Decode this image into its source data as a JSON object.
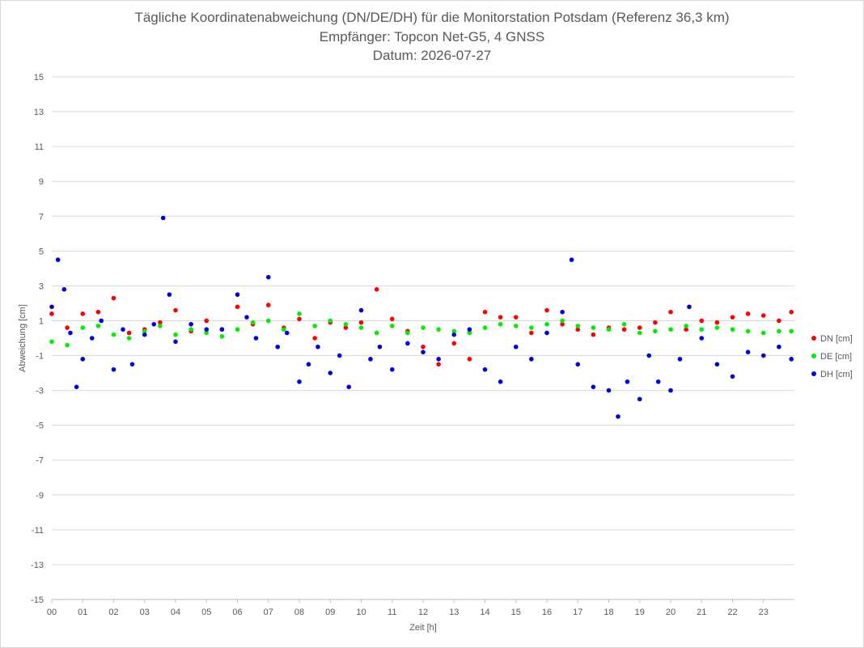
{
  "title_lines": [
    "Tägliche Koordinatenabweichung (DN/DE/DH) für die Monitorstation Potsdam (Referenz 36,3 km)",
    "Empfänger: Topcon Net-G5, 4 GNSS",
    "Datum: 2026-07-27"
  ],
  "chart_data": {
    "type": "scatter",
    "xlabel": "Zeit [h]",
    "ylabel": "Abweichung [cm]",
    "xlim": [
      0,
      24
    ],
    "ylim": [
      -15,
      15
    ],
    "x_ticks": [
      "00",
      "01",
      "02",
      "03",
      "04",
      "05",
      "06",
      "07",
      "08",
      "09",
      "10",
      "11",
      "12",
      "13",
      "14",
      "15",
      "16",
      "17",
      "18",
      "19",
      "20",
      "21",
      "22",
      "23"
    ],
    "y_ticks": [
      "15",
      "13",
      "11",
      "9",
      "7",
      "5",
      "3",
      "1",
      "-1",
      "-3",
      "-5",
      "-7",
      "-9",
      "-11",
      "-13",
      "-15"
    ],
    "grid": "horizontal",
    "legend_position": "right",
    "series": [
      {
        "name": "DN [cm]",
        "color": "#ff0000",
        "x": [
          0.0,
          0.5,
          1.0,
          1.5,
          2.0,
          2.5,
          3.0,
          3.5,
          4.0,
          4.5,
          5.0,
          5.5,
          6.0,
          6.5,
          7.0,
          7.5,
          8.0,
          8.5,
          9.0,
          9.5,
          10.0,
          10.5,
          11.0,
          11.5,
          12.0,
          12.5,
          13.0,
          13.5,
          14.0,
          14.5,
          15.0,
          15.5,
          16.0,
          16.5,
          17.0,
          17.5,
          18.0,
          18.5,
          19.0,
          19.5,
          20.0,
          20.5,
          21.0,
          21.5,
          22.0,
          22.5,
          23.0,
          23.5,
          23.9
        ],
        "y": [
          1.4,
          0.6,
          1.4,
          1.5,
          2.3,
          0.3,
          0.5,
          0.9,
          1.6,
          0.4,
          1.0,
          0.5,
          1.8,
          0.8,
          1.9,
          0.6,
          1.1,
          0.0,
          0.9,
          0.6,
          0.9,
          2.8,
          1.1,
          0.4,
          -0.5,
          -1.5,
          -0.3,
          -1.2,
          1.5,
          1.2,
          1.2,
          0.3,
          1.6,
          0.8,
          0.5,
          0.2,
          0.6,
          0.5,
          0.6,
          0.9,
          1.5,
          0.5,
          1.0,
          0.9,
          1.2,
          1.4,
          1.3,
          1.0,
          1.5
        ]
      },
      {
        "name": "DE [cm]",
        "color": "#00ee00",
        "x": [
          0.0,
          0.5,
          1.0,
          1.5,
          2.0,
          2.5,
          3.0,
          3.5,
          4.0,
          4.5,
          5.0,
          5.5,
          6.0,
          6.5,
          7.0,
          7.5,
          8.0,
          8.5,
          9.0,
          9.5,
          10.0,
          10.5,
          11.0,
          11.5,
          12.0,
          12.5,
          13.0,
          13.5,
          14.0,
          14.5,
          15.0,
          15.5,
          16.0,
          16.5,
          17.0,
          17.5,
          18.0,
          18.5,
          19.0,
          19.5,
          20.0,
          20.5,
          21.0,
          21.5,
          22.0,
          22.5,
          23.0,
          23.5,
          23.9
        ],
        "y": [
          -0.2,
          -0.4,
          0.6,
          0.7,
          0.2,
          0.0,
          0.4,
          0.7,
          0.2,
          0.5,
          0.3,
          0.1,
          0.5,
          0.9,
          1.0,
          0.5,
          1.4,
          0.7,
          1.0,
          0.8,
          0.6,
          0.3,
          0.7,
          0.3,
          0.6,
          0.5,
          0.4,
          0.3,
          0.6,
          0.8,
          0.7,
          0.6,
          0.8,
          1.0,
          0.7,
          0.6,
          0.5,
          0.8,
          0.3,
          0.4,
          0.5,
          0.7,
          0.5,
          0.6,
          0.5,
          0.4,
          0.3,
          0.4,
          0.4
        ]
      },
      {
        "name": "DH [cm]",
        "color": "#0000dd",
        "x": [
          0.0,
          0.2,
          0.4,
          0.6,
          0.8,
          1.0,
          1.3,
          1.6,
          2.0,
          2.3,
          2.6,
          3.0,
          3.3,
          3.6,
          3.8,
          4.0,
          4.5,
          5.0,
          5.5,
          6.0,
          6.3,
          6.6,
          7.0,
          7.3,
          7.6,
          8.0,
          8.3,
          8.6,
          9.0,
          9.3,
          9.6,
          10.0,
          10.3,
          10.6,
          11.0,
          11.5,
          12.0,
          12.5,
          13.0,
          13.5,
          14.0,
          14.5,
          15.0,
          15.5,
          16.0,
          16.5,
          16.8,
          17.0,
          17.5,
          18.0,
          18.3,
          18.6,
          19.0,
          19.3,
          19.6,
          20.0,
          20.3,
          20.6,
          21.0,
          21.5,
          22.0,
          22.5,
          23.0,
          23.5,
          23.9
        ],
        "y": [
          1.8,
          4.5,
          2.8,
          0.3,
          -2.8,
          -1.2,
          0.0,
          1.0,
          -1.8,
          0.5,
          -1.5,
          0.2,
          0.8,
          6.9,
          2.5,
          -0.2,
          0.8,
          0.5,
          0.5,
          2.5,
          1.2,
          0.0,
          3.5,
          -0.5,
          0.3,
          -2.5,
          -1.5,
          -0.5,
          -2.0,
          -1.0,
          -2.8,
          1.6,
          -1.2,
          -0.5,
          -1.8,
          -0.3,
          -0.8,
          -1.2,
          0.2,
          0.5,
          -1.8,
          -2.5,
          -0.5,
          -1.2,
          0.3,
          1.5,
          4.5,
          -1.5,
          -2.8,
          -3.0,
          -4.5,
          -2.5,
          -3.5,
          -1.0,
          -2.5,
          -3.0,
          -1.2,
          1.8,
          0.0,
          -1.5,
          -2.2,
          -0.8,
          -1.0,
          -0.5,
          -1.2
        ]
      }
    ]
  }
}
